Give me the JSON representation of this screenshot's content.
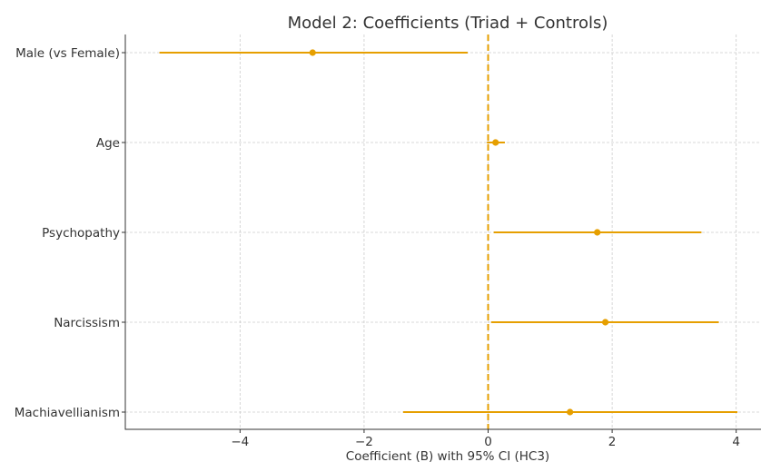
{
  "chart_data": {
    "type": "forest",
    "title": "Model 2: Coefficients (Triad + Controls)",
    "xlabel": "Coefficient (B) with 95% CI (HC3)",
    "ylabel": "",
    "xlim": [
      -5.85,
      4.4
    ],
    "xticks": [
      -4,
      -2,
      0,
      2,
      4
    ],
    "xtick_labels": [
      "−4",
      "−2",
      "0",
      "2",
      "4"
    ],
    "reference_line": 0,
    "grid": true,
    "color": "#E69F00",
    "points": [
      {
        "label": "Male (vs Female)",
        "estimate": -2.83,
        "ci_low": -5.3,
        "ci_high": -0.33
      },
      {
        "label": "Age",
        "estimate": 0.12,
        "ci_low": -0.02,
        "ci_high": 0.27
      },
      {
        "label": "Psychopathy",
        "estimate": 1.76,
        "ci_low": 0.09,
        "ci_high": 3.44
      },
      {
        "label": "Narcissism",
        "estimate": 1.89,
        "ci_low": 0.05,
        "ci_high": 3.72
      },
      {
        "label": "Machiavellianism",
        "estimate": 1.32,
        "ci_low": -1.37,
        "ci_high": 4.02
      }
    ]
  }
}
